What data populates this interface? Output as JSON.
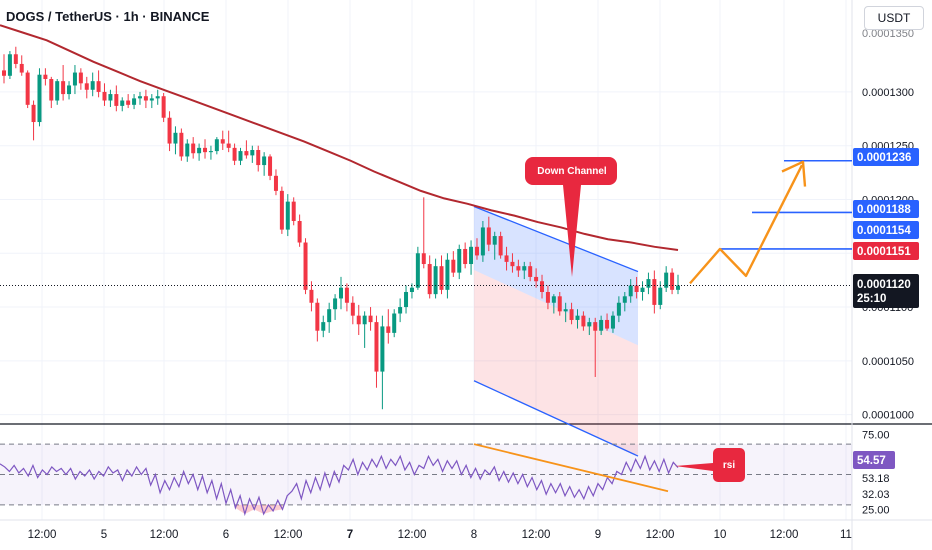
{
  "header": {
    "symbol_title": "DOGS / TetherUS · 1h · BINANCE",
    "currency_button": "USDT"
  },
  "colors": {
    "up": "#089981",
    "down": "#f23645",
    "ma": "#b2282f",
    "channel_blue": "#2962ff",
    "arrow_orange": "#f7931a",
    "rsi_line": "#7e57c2",
    "annotation_red": "#e8283f"
  },
  "chart_data": [
    {
      "type": "candlestick",
      "ylim": [
        9.95e-05,
        0.0001365
      ],
      "y_ticks": [
        "0.0001000",
        "0.0001050",
        "0.0001100",
        "0.0001150",
        "0.0001200",
        "0.0001250",
        "0.0001300"
      ],
      "x_tick_labels": [
        "12:00",
        "5",
        "12:00",
        "6",
        "12:00",
        "7",
        "12:00",
        "8",
        "12:00",
        "9",
        "12:00",
        "10",
        "12:00",
        "11"
      ],
      "x_tick_bold": "7",
      "last_price": {
        "value": "0.0001120",
        "countdown": "25:10"
      },
      "ohlc": [
        [
          0.000132,
          0.0001335,
          0.0001308,
          0.0001315
        ],
        [
          0.0001315,
          0.0001338,
          0.0001312,
          0.0001335
        ],
        [
          0.0001335,
          0.0001342,
          0.0001322,
          0.0001326
        ],
        [
          0.0001326,
          0.0001334,
          0.0001315,
          0.0001318
        ],
        [
          0.0001318,
          0.000132,
          0.0001285,
          0.0001288
        ],
        [
          0.0001288,
          0.0001292,
          0.0001255,
          0.0001272
        ],
        [
          0.0001272,
          0.0001322,
          0.0001268,
          0.0001316
        ],
        [
          0.0001316,
          0.0001322,
          0.0001306,
          0.0001312
        ],
        [
          0.0001312,
          0.0001314,
          0.0001285,
          0.0001292
        ],
        [
          0.0001292,
          0.0001312,
          0.0001288,
          0.000131
        ],
        [
          0.000131,
          0.0001325,
          0.0001292,
          0.0001298
        ],
        [
          0.0001298,
          0.000131,
          0.0001293,
          0.0001306
        ],
        [
          0.0001306,
          0.0001325,
          0.0001298,
          0.0001318
        ],
        [
          0.0001318,
          0.0001322,
          0.0001302,
          0.0001308
        ],
        [
          0.0001308,
          0.0001314,
          0.0001294,
          0.0001302
        ],
        [
          0.0001302,
          0.0001318,
          0.0001296,
          0.000131
        ],
        [
          0.000131,
          0.000132,
          0.0001295,
          0.00013
        ],
        [
          0.00013,
          0.0001308,
          0.0001287,
          0.0001292
        ],
        [
          0.0001292,
          0.0001302,
          0.0001286,
          0.0001298
        ],
        [
          0.0001298,
          0.0001306,
          0.0001282,
          0.0001287
        ],
        [
          0.0001287,
          0.0001295,
          0.0001282,
          0.0001292
        ],
        [
          0.0001292,
          0.0001298,
          0.0001285,
          0.0001288
        ],
        [
          0.0001288,
          0.0001298,
          0.0001284,
          0.0001294
        ],
        [
          0.0001294,
          0.00013,
          0.0001288,
          0.0001296
        ],
        [
          0.0001296,
          0.0001302,
          0.0001285,
          0.0001292
        ],
        [
          0.0001292,
          0.0001298,
          0.0001285,
          0.0001294
        ],
        [
          0.0001294,
          0.0001302,
          0.0001288,
          0.0001296
        ],
        [
          0.0001296,
          0.0001299,
          0.0001272,
          0.0001276
        ],
        [
          0.0001276,
          0.0001282,
          0.0001245,
          0.0001252
        ],
        [
          0.0001252,
          0.0001268,
          0.0001242,
          0.0001262
        ],
        [
          0.0001262,
          0.0001266,
          0.0001236,
          0.000124
        ],
        [
          0.000124,
          0.0001256,
          0.0001235,
          0.0001252
        ],
        [
          0.0001252,
          0.0001258,
          0.0001238,
          0.0001243
        ],
        [
          0.0001243,
          0.0001252,
          0.0001236,
          0.0001248
        ],
        [
          0.0001248,
          0.0001256,
          0.0001238,
          0.0001244
        ],
        [
          0.0001244,
          0.000125,
          0.0001237,
          0.0001245
        ],
        [
          0.0001245,
          0.0001258,
          0.0001242,
          0.0001256
        ],
        [
          0.0001256,
          0.0001264,
          0.0001246,
          0.0001252
        ],
        [
          0.0001252,
          0.0001264,
          0.0001244,
          0.0001248
        ],
        [
          0.0001248,
          0.0001252,
          0.0001232,
          0.0001236
        ],
        [
          0.0001236,
          0.0001248,
          0.0001232,
          0.0001245
        ],
        [
          0.0001245,
          0.0001255,
          0.0001238,
          0.0001241
        ],
        [
          0.0001241,
          0.000125,
          0.0001234,
          0.0001246
        ],
        [
          0.0001246,
          0.000125,
          0.0001226,
          0.0001232
        ],
        [
          0.0001232,
          0.0001244,
          0.0001222,
          0.000124
        ],
        [
          0.000124,
          0.0001242,
          0.0001218,
          0.0001222
        ],
        [
          0.0001222,
          0.0001228,
          0.0001204,
          0.0001208
        ],
        [
          0.0001208,
          0.0001212,
          0.0001168,
          0.0001172
        ],
        [
          0.0001172,
          0.0001205,
          0.0001166,
          0.0001198
        ],
        [
          0.0001198,
          0.0001202,
          0.0001176,
          0.000118
        ],
        [
          0.000118,
          0.0001186,
          0.0001156,
          0.000116
        ],
        [
          0.000116,
          0.0001164,
          0.0001112,
          0.0001116
        ],
        [
          0.0001116,
          0.0001124,
          0.0001096,
          0.0001104
        ],
        [
          0.0001104,
          0.0001108,
          0.0001068,
          0.0001078
        ],
        [
          0.0001078,
          0.0001092,
          0.0001072,
          0.0001086
        ],
        [
          0.0001086,
          0.0001104,
          0.0001076,
          0.0001098
        ],
        [
          0.0001098,
          0.0001112,
          0.0001088,
          0.0001108
        ],
        [
          0.0001108,
          0.0001128,
          0.0001098,
          0.0001118
        ],
        [
          0.0001118,
          0.0001122,
          0.0001096,
          0.0001104
        ],
        [
          0.0001104,
          0.000111,
          0.0001084,
          0.0001092
        ],
        [
          0.0001092,
          0.0001102,
          0.0001074,
          0.0001084
        ],
        [
          0.0001084,
          0.0001096,
          0.0001062,
          0.0001092
        ],
        [
          0.0001092,
          0.00011,
          0.0001078,
          0.0001086
        ],
        [
          0.0001086,
          0.0001092,
          0.0001025,
          0.000104
        ],
        [
          0.000104,
          0.0001092,
          0.0001005,
          0.0001082
        ],
        [
          0.0001082,
          0.0001098,
          0.0001066,
          0.0001076
        ],
        [
          0.0001076,
          0.0001098,
          0.0001072,
          0.0001094
        ],
        [
          0.0001094,
          0.0001108,
          0.0001086,
          0.00011
        ],
        [
          0.00011,
          0.000112,
          0.0001094,
          0.0001114
        ],
        [
          0.0001114,
          0.0001122,
          0.0001108,
          0.0001118
        ],
        [
          0.0001118,
          0.0001156,
          0.0001116,
          0.000115
        ],
        [
          0.000115,
          0.0001202,
          0.0001136,
          0.000114
        ],
        [
          0.000114,
          0.0001148,
          0.0001108,
          0.0001112
        ],
        [
          0.0001112,
          0.0001145,
          0.0001108,
          0.0001138
        ],
        [
          0.0001138,
          0.0001148,
          0.0001112,
          0.0001116
        ],
        [
          0.0001116,
          0.000115,
          0.0001108,
          0.0001144
        ],
        [
          0.0001144,
          0.0001152,
          0.0001128,
          0.0001132
        ],
        [
          0.0001132,
          0.0001158,
          0.0001126,
          0.0001154
        ],
        [
          0.0001154,
          0.000116,
          0.0001136,
          0.000114
        ],
        [
          0.000114,
          0.0001162,
          0.000113,
          0.0001156
        ],
        [
          0.0001156,
          0.0001164,
          0.0001144,
          0.0001148
        ],
        [
          0.0001148,
          0.000118,
          0.0001142,
          0.0001174
        ],
        [
          0.0001174,
          0.0001184,
          0.0001152,
          0.0001158
        ],
        [
          0.0001158,
          0.000117,
          0.0001144,
          0.0001166
        ],
        [
          0.0001166,
          0.000117,
          0.0001145,
          0.0001148
        ],
        [
          0.0001148,
          0.0001156,
          0.0001134,
          0.0001142
        ],
        [
          0.0001142,
          0.000115,
          0.0001132,
          0.0001138
        ],
        [
          0.0001138,
          0.0001144,
          0.0001128,
          0.0001134
        ],
        [
          0.0001134,
          0.0001142,
          0.0001126,
          0.0001138
        ],
        [
          0.0001138,
          0.0001142,
          0.0001124,
          0.0001128
        ],
        [
          0.0001128,
          0.0001136,
          0.0001118,
          0.0001124
        ],
        [
          0.0001124,
          0.000113,
          0.0001108,
          0.0001114
        ],
        [
          0.0001114,
          0.000112,
          0.0001098,
          0.0001104
        ],
        [
          0.0001104,
          0.0001112,
          0.0001094,
          0.000111
        ],
        [
          0.000111,
          0.0001114,
          0.0001092,
          0.0001096
        ],
        [
          0.0001096,
          0.0001104,
          0.0001086,
          0.0001098
        ],
        [
          0.0001098,
          0.0001104,
          0.0001084,
          0.0001088
        ],
        [
          0.0001088,
          0.0001098,
          0.000108,
          0.0001092
        ],
        [
          0.0001092,
          0.0001096,
          0.0001078,
          0.0001082
        ],
        [
          0.0001082,
          0.000109,
          0.0001074,
          0.0001086
        ],
        [
          0.0001086,
          0.000109,
          0.0001035,
          0.0001078
        ],
        [
          0.0001078,
          0.0001092,
          0.0001074,
          0.0001088
        ],
        [
          0.0001088,
          0.0001094,
          0.0001078,
          0.000108
        ],
        [
          0.000108,
          0.0001096,
          0.0001076,
          0.0001092
        ],
        [
          0.0001092,
          0.000111,
          0.0001086,
          0.0001104
        ],
        [
          0.0001104,
          0.0001114,
          0.0001096,
          0.000111
        ],
        [
          0.000111,
          0.0001126,
          0.0001104,
          0.000112
        ],
        [
          0.000112,
          0.0001128,
          0.0001108,
          0.0001114
        ],
        [
          0.0001114,
          0.0001124,
          0.0001106,
          0.0001118
        ],
        [
          0.0001118,
          0.0001132,
          0.0001112,
          0.0001126
        ],
        [
          0.0001126,
          0.0001134,
          0.0001094,
          0.0001102
        ],
        [
          0.0001102,
          0.0001124,
          0.0001098,
          0.0001118
        ],
        [
          0.0001118,
          0.0001138,
          0.0001114,
          0.0001132
        ],
        [
          0.0001132,
          0.0001136,
          0.0001112,
          0.0001116
        ],
        [
          0.0001116,
          0.000113,
          0.0001112,
          0.000112
        ]
      ],
      "moving_average": [
        0.0001362,
        0.0001355,
        0.0001348,
        0.0001338,
        0.0001328,
        0.0001319,
        0.000131,
        0.0001302,
        0.0001294,
        0.0001286,
        0.0001278,
        0.000127,
        0.0001262,
        0.0001254,
        0.0001245,
        0.0001236,
        0.0001226,
        0.0001217,
        0.0001208,
        0.0001201,
        0.0001196,
        0.000119,
        0.0001185,
        0.0001179,
        0.0001174,
        0.0001168,
        0.0001163,
        0.000116,
        0.0001156,
        0.0001153
      ],
      "channel": {
        "upper": [
          [
            0.00011935,
            0.00011195
          ],
          [
            0.0001133,
            0.00010495
          ]
        ],
        "lower": [
          [
            0.0001133,
            0.00010495
          ]
        ]
      },
      "price_tags": [
        {
          "value": "0.0001236",
          "kind": "blue"
        },
        {
          "value": "0.0001188",
          "kind": "blue"
        },
        {
          "value": "0.0001154",
          "kind": "blue"
        },
        {
          "value": "0.0001151",
          "kind": "red"
        }
      ],
      "horizontal_levels": [
        0.0001236,
        0.0001188,
        0.0001154
      ],
      "annotation": "Down Channel"
    },
    {
      "type": "line",
      "series": [
        {
          "values": [
            57,
            55,
            52,
            56,
            51,
            54,
            49,
            56,
            48,
            53,
            50,
            55,
            52,
            54,
            50,
            54,
            47,
            52,
            49,
            53,
            47,
            52,
            49,
            55,
            51,
            53,
            46,
            53,
            49,
            55,
            50,
            54,
            43,
            50,
            38,
            46,
            40,
            48,
            42,
            52,
            44,
            50,
            40,
            49,
            38,
            46,
            34,
            44,
            31,
            40,
            28,
            36,
            24,
            34,
            27,
            35,
            24,
            30,
            26,
            33,
            27,
            36,
            39,
            44,
            34,
            46,
            38,
            48,
            40,
            51,
            42,
            52,
            45,
            56,
            53,
            60,
            50,
            58,
            53,
            60,
            55,
            62,
            54,
            60,
            56,
            62,
            53,
            58,
            50,
            56,
            54,
            62,
            56,
            60,
            52,
            59,
            54,
            59,
            50,
            56,
            48,
            54,
            47,
            53,
            50,
            55,
            46,
            52,
            45,
            51,
            44,
            50,
            42,
            48,
            40,
            46,
            37,
            44,
            38,
            44,
            36,
            42,
            35,
            40,
            34,
            42,
            36,
            44,
            40,
            48,
            44,
            52,
            50,
            58,
            52,
            60,
            54,
            62,
            53,
            59,
            52,
            60,
            51,
            58,
            54.57
          ]
        }
      ],
      "ylim": [
        22,
        78
      ],
      "y_ticks": [
        "75.00",
        "25.00"
      ],
      "level_labels": [
        "53.18",
        "32.03"
      ],
      "current_value": "54.57",
      "annotation": "rsi"
    }
  ]
}
